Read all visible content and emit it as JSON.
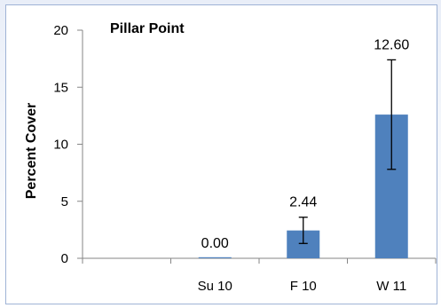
{
  "chart_data": {
    "type": "bar",
    "title": "Pillar Point",
    "xlabel": "",
    "ylabel": "Percent Cover",
    "ylim": [
      0,
      20
    ],
    "yticks": [
      0,
      5,
      10,
      15,
      20
    ],
    "categories": [
      "",
      "Su 10",
      "F 10",
      "W 11"
    ],
    "values": [
      null,
      0.0,
      2.44,
      12.6
    ],
    "data_labels": [
      "",
      "0.00",
      "2.44",
      "12.60"
    ],
    "error_low": [
      null,
      0.0,
      1.3,
      7.8
    ],
    "error_high": [
      null,
      0.0,
      3.6,
      17.4
    ],
    "bar_color": "#4f81bd",
    "grid": false,
    "legend": "none"
  }
}
